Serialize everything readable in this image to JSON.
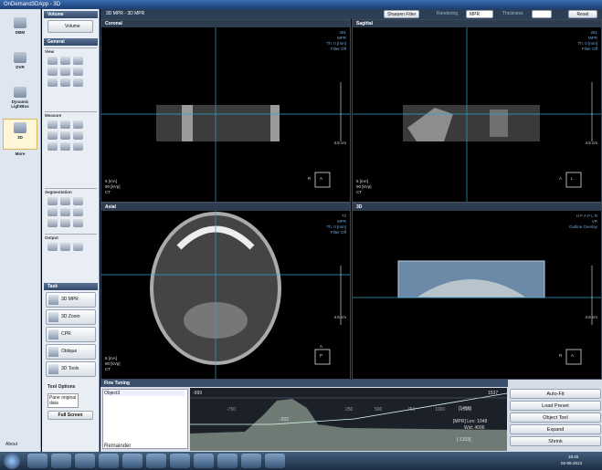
{
  "window": {
    "title": "OnDemand3DApp - 3D"
  },
  "nav": [
    "DBM",
    "DVR",
    "Dynamic LightBox",
    "3D",
    "More"
  ],
  "about": "About",
  "panel": {
    "volume_header": "Volume",
    "volume_button": "Volume",
    "general_header": "General",
    "groups": [
      "View",
      "Measure",
      "Segmentation",
      "Output"
    ],
    "task_header": "Task",
    "tasks": [
      "3D MPR",
      "3D Zoom",
      "CPR",
      "Oblique",
      "3D Tools"
    ],
    "tool_options_header": "Tool Options",
    "tool_options_text": "Pane original data",
    "full_screen": "Full Screen"
  },
  "toolbar": {
    "title": "3D MPR - 3D MPR",
    "sharpen": "Sharpen Filter",
    "rendering_label": "Rendering",
    "rendering_value": "MPR",
    "thickness_label": "Thickness",
    "reset": "Reset"
  },
  "viewports": [
    {
      "title": "Coronal",
      "info": [
        "281",
        "MPR",
        "Th: 0 [mm]",
        "Filter Off"
      ],
      "scale": "4.5 cm",
      "params": [
        "6 [mA]",
        "90 [kVp]",
        "CT"
      ],
      "orient": [
        "R",
        "A"
      ]
    },
    {
      "title": "Sagittal",
      "info": [
        "281",
        "MPR",
        "Th: 0 [mm]",
        "Filter Off"
      ],
      "scale": "4.5 cm",
      "params": [
        "6 [mA]",
        "90 [kVp]",
        "CT"
      ],
      "orient": [
        "A",
        "L"
      ]
    },
    {
      "title": "Axial",
      "info": [
        "72",
        "MPR",
        "Th: 0 [mm]",
        "Filter Off"
      ],
      "scale": "4.5 cm",
      "params": [
        "6 [mA]",
        "90 [kVp]",
        "CT"
      ],
      "orient": [
        "A",
        "P"
      ]
    },
    {
      "title": "3D",
      "info": [
        "H F A P L R",
        "VR",
        "Outline Overlay"
      ],
      "scale": "4.5 cm",
      "params": [],
      "orient": [
        "R",
        "A"
      ]
    }
  ],
  "fine_tuning": {
    "title": "Fine Tuning",
    "objects": [
      "Object3"
    ],
    "remainder": "Remainder",
    "min_label": "-999",
    "max_label": "1537",
    "peak_label": "-202",
    "upper_label": "[1456]",
    "level_label": "[MPR] Lev: 1048",
    "width_label": "Wid: 4096",
    "lower_label": "[-1303]",
    "axis_labels": [
      "-750",
      "250",
      "500",
      "750",
      "1000",
      "1250"
    ],
    "buttons": [
      "Auto-Fit",
      "Load Preset",
      "Object Tool",
      "Expand",
      "Shrink"
    ]
  },
  "taskbar": {
    "time": "18:45",
    "date": "02-06-2013"
  }
}
